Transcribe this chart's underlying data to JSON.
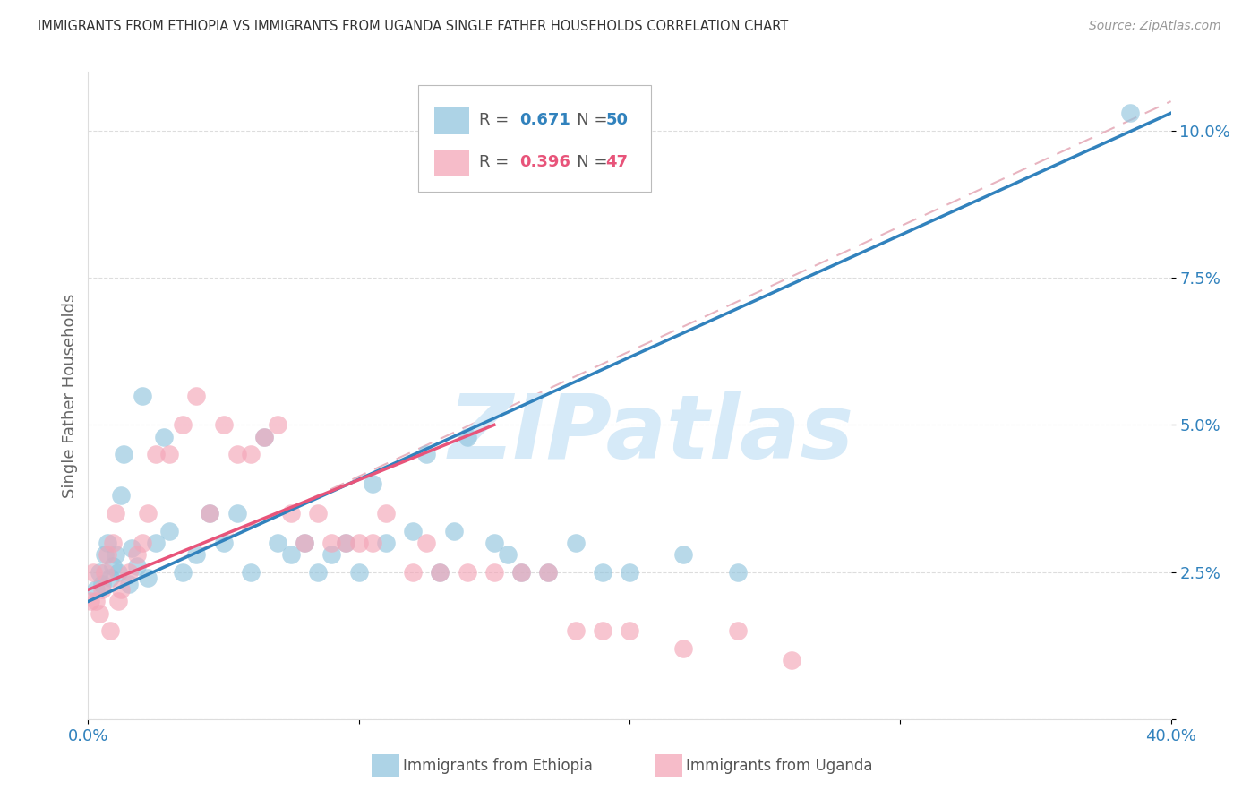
{
  "title": "IMMIGRANTS FROM ETHIOPIA VS IMMIGRANTS FROM UGANDA SINGLE FATHER HOUSEHOLDS CORRELATION CHART",
  "source": "Source: ZipAtlas.com",
  "ylabel": "Single Father Households",
  "legend_ethiopia": "Immigrants from Ethiopia",
  "legend_uganda": "Immigrants from Uganda",
  "R_ethiopia": 0.671,
  "N_ethiopia": 50,
  "R_uganda": 0.396,
  "N_uganda": 47,
  "blue_scatter_color": "#92c5de",
  "pink_scatter_color": "#f4a6b8",
  "blue_line_color": "#3182bd",
  "pink_line_color": "#e8547a",
  "diag_color": "#e8b4c0",
  "watermark": "ZIPatlas",
  "watermark_color": "#d6eaf8",
  "tick_color": "#3182bd",
  "xlim": [
    0.0,
    40.0
  ],
  "ylim": [
    0.0,
    11.0
  ],
  "eth_x": [
    0.3,
    0.4,
    0.5,
    0.6,
    0.7,
    0.8,
    0.9,
    1.0,
    1.1,
    1.2,
    1.3,
    1.5,
    1.6,
    1.8,
    2.0,
    2.2,
    2.5,
    2.8,
    3.0,
    3.5,
    4.0,
    4.5,
    5.0,
    5.5,
    6.0,
    6.5,
    7.0,
    7.5,
    8.0,
    8.5,
    9.0,
    9.5,
    10.0,
    10.5,
    11.0,
    12.0,
    12.5,
    13.0,
    13.5,
    14.0,
    15.0,
    15.5,
    16.0,
    17.0,
    18.0,
    19.0,
    20.0,
    22.0,
    24.0,
    38.5
  ],
  "eth_y": [
    2.2,
    2.5,
    2.3,
    2.8,
    3.0,
    2.4,
    2.6,
    2.8,
    2.5,
    3.8,
    4.5,
    2.3,
    2.9,
    2.6,
    5.5,
    2.4,
    3.0,
    4.8,
    3.2,
    2.5,
    2.8,
    3.5,
    3.0,
    3.5,
    2.5,
    4.8,
    3.0,
    2.8,
    3.0,
    2.5,
    2.8,
    3.0,
    2.5,
    4.0,
    3.0,
    3.2,
    4.5,
    2.5,
    3.2,
    4.8,
    3.0,
    2.8,
    2.5,
    2.5,
    3.0,
    2.5,
    2.5,
    2.8,
    2.5,
    10.3
  ],
  "uga_x": [
    0.1,
    0.2,
    0.3,
    0.4,
    0.5,
    0.6,
    0.7,
    0.8,
    0.9,
    1.0,
    1.1,
    1.2,
    1.5,
    1.8,
    2.0,
    2.2,
    2.5,
    3.0,
    3.5,
    4.0,
    4.5,
    5.0,
    5.5,
    6.0,
    6.5,
    7.0,
    7.5,
    8.0,
    8.5,
    9.0,
    9.5,
    10.0,
    10.5,
    11.0,
    12.0,
    12.5,
    13.0,
    14.0,
    15.0,
    16.0,
    17.0,
    18.0,
    19.0,
    20.0,
    22.0,
    24.0,
    26.0
  ],
  "uga_y": [
    2.0,
    2.5,
    2.0,
    1.8,
    2.2,
    2.5,
    2.8,
    1.5,
    3.0,
    3.5,
    2.0,
    2.2,
    2.5,
    2.8,
    3.0,
    3.5,
    4.5,
    4.5,
    5.0,
    5.5,
    3.5,
    5.0,
    4.5,
    4.5,
    4.8,
    5.0,
    3.5,
    3.0,
    3.5,
    3.0,
    3.0,
    3.0,
    3.0,
    3.5,
    2.5,
    3.0,
    2.5,
    2.5,
    2.5,
    2.5,
    2.5,
    1.5,
    1.5,
    1.5,
    1.2,
    1.5,
    1.0
  ],
  "eth_reg_x0": 0.0,
  "eth_reg_y0": 2.0,
  "eth_reg_x1": 40.0,
  "eth_reg_y1": 10.3,
  "uga_reg_x0": 0.0,
  "uga_reg_y0": 2.2,
  "uga_reg_x1": 15.0,
  "uga_reg_y1": 5.0,
  "diag_x0": 0.0,
  "diag_y0": 2.0,
  "diag_x1": 40.0,
  "diag_y1": 10.5
}
